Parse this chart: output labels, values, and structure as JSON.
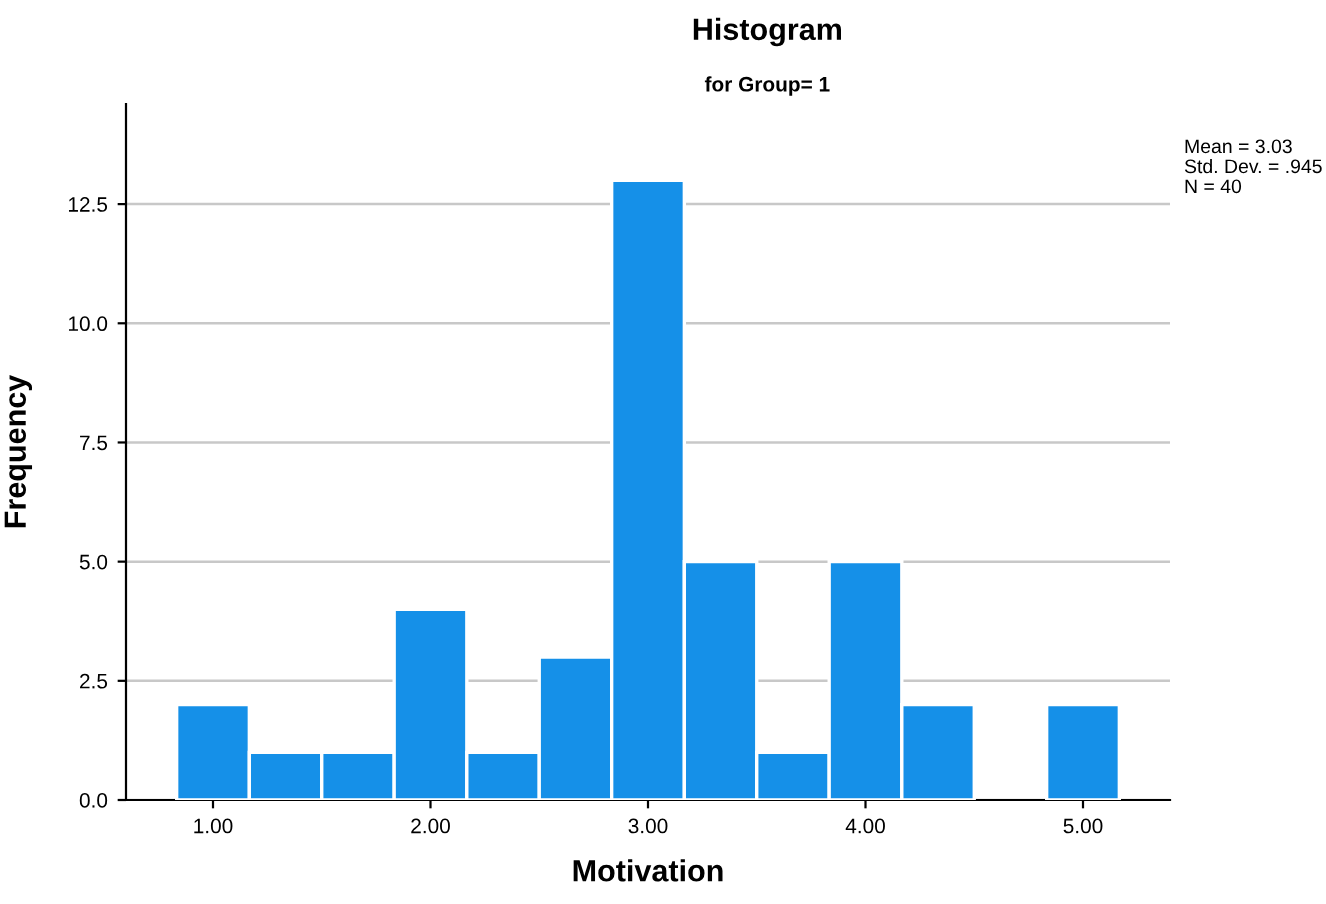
{
  "chart_data": {
    "type": "histogram",
    "title": "Histogram",
    "subtitle": "for Group= 1",
    "xlabel": "Motivation",
    "ylabel": "Frequency",
    "bins": [
      0.833,
      1.167,
      1.5,
      1.833,
      2.167,
      2.5,
      2.833,
      3.167,
      3.5,
      3.833,
      4.167,
      4.5,
      4.833,
      5.167
    ],
    "values": [
      2,
      1,
      1,
      4,
      1,
      3,
      13,
      5,
      1,
      5,
      2,
      0,
      2
    ],
    "color": "#1590e8",
    "xlim": [
      0.6,
      5.4
    ],
    "xticks": [
      {
        "value": 1,
        "label": "1.00"
      },
      {
        "value": 2,
        "label": "2.00"
      },
      {
        "value": 3,
        "label": "3.00"
      },
      {
        "value": 4,
        "label": "4.00"
      },
      {
        "value": 5,
        "label": "5.00"
      }
    ],
    "ylim": [
      0,
      14.6
    ],
    "yticks": [
      {
        "value": 0,
        "label": "0.0"
      },
      {
        "value": 2.5,
        "label": "2.5"
      },
      {
        "value": 5,
        "label": "5.0"
      },
      {
        "value": 7.5,
        "label": "7.5"
      },
      {
        "value": 10,
        "label": "10.0"
      },
      {
        "value": 12.5,
        "label": "12.5"
      }
    ],
    "grid": "y",
    "annotations": [
      "Mean = 3.03",
      "Std. Dev. = .945",
      "N = 40"
    ]
  }
}
